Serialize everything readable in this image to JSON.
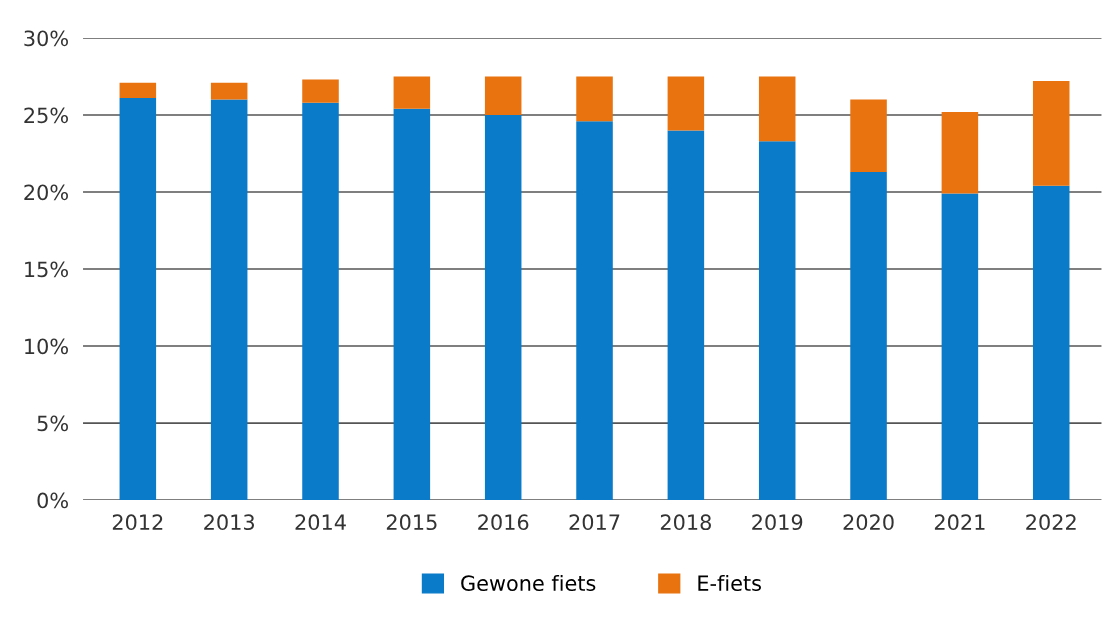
{
  "chart_data": {
    "type": "bar",
    "stacked": true,
    "categories": [
      "2012",
      "2013",
      "2014",
      "2015",
      "2016",
      "2017",
      "2018",
      "2019",
      "2020",
      "2021",
      "2022"
    ],
    "series": [
      {
        "name": "Gewone fiets",
        "color": "#0a7bc9",
        "values": [
          26.1,
          26.0,
          25.8,
          25.4,
          25.0,
          24.6,
          24.0,
          23.3,
          21.3,
          19.9,
          20.4
        ]
      },
      {
        "name": "E-fiets",
        "color": "#e8730f",
        "values": [
          1.0,
          1.1,
          1.5,
          2.1,
          2.5,
          2.9,
          3.5,
          4.2,
          4.7,
          5.3,
          6.8
        ]
      }
    ],
    "ylim": [
      0,
      30
    ],
    "yticks": [
      {
        "value": 0,
        "label": "0%"
      },
      {
        "value": 5,
        "label": "5%"
      },
      {
        "value": 10,
        "label": "10%"
      },
      {
        "value": 15,
        "label": "15%"
      },
      {
        "value": 20,
        "label": "20%"
      },
      {
        "value": 25,
        "label": "25%"
      },
      {
        "value": 30,
        "label": "30%"
      }
    ],
    "grid": "y",
    "legend": "bottom"
  }
}
